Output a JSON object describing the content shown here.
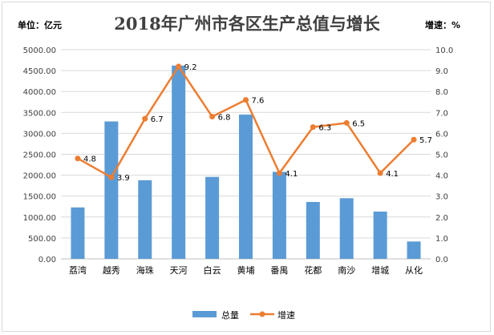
{
  "chart_data": {
    "type": "bar",
    "title": "2018年广州市各区生产总值与增长",
    "left_unit_label": "单位：亿元",
    "right_unit_label": "增速：%",
    "categories": [
      "荔湾",
      "越秀",
      "海珠",
      "天河",
      "白云",
      "黄埔",
      "番禺",
      "花都",
      "南沙",
      "增城",
      "从化"
    ],
    "series": [
      {
        "name": "总量",
        "type": "bar",
        "axis": "left",
        "color": "#5b9bd5",
        "values": [
          1230,
          3285,
          1880,
          4620,
          1960,
          3450,
          2080,
          1360,
          1450,
          1130,
          415
        ]
      },
      {
        "name": "增速",
        "type": "line",
        "axis": "right",
        "color": "#ed7d31",
        "values": [
          4.8,
          3.9,
          6.7,
          9.2,
          6.8,
          7.6,
          4.1,
          6.3,
          6.5,
          4.1,
          5.7
        ],
        "labels": [
          "4.8",
          "3.9",
          "6.7",
          "9.2",
          "6.8",
          "7.6",
          "4.1",
          "6.3",
          "6.5",
          "4.1",
          "5.7"
        ]
      }
    ],
    "ylim_left": [
      0,
      5000
    ],
    "ylim_right": [
      0,
      10
    ],
    "yticks_left": [
      "0.00",
      "500.00",
      "1000.00",
      "1500.00",
      "2000.00",
      "2500.00",
      "3000.00",
      "3500.00",
      "4000.00",
      "4500.00",
      "5000.00"
    ],
    "yticks_right": [
      "0.0",
      "1.0",
      "2.0",
      "3.0",
      "4.0",
      "5.0",
      "6.0",
      "7.0",
      "8.0",
      "9.0",
      "10.0"
    ],
    "grid": true,
    "legend_position": "bottom"
  }
}
